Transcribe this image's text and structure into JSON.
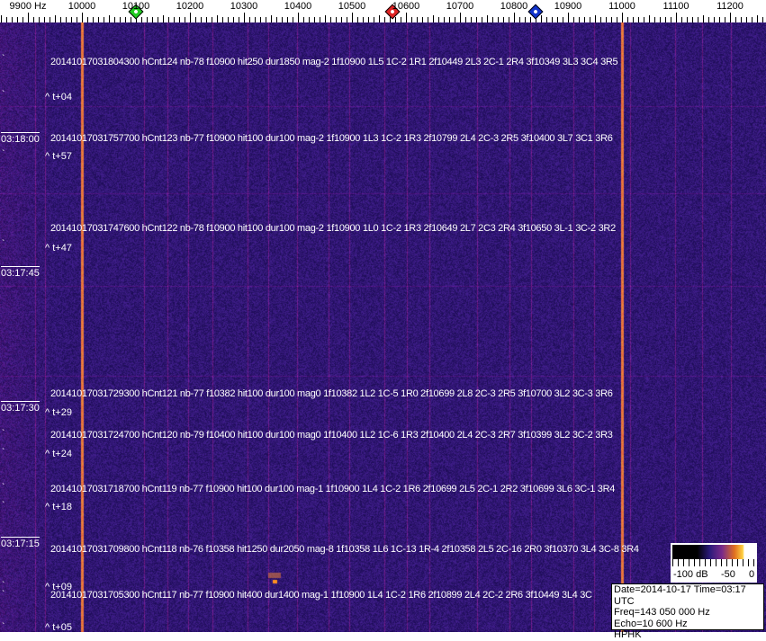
{
  "axis": {
    "unit_label": "9900 Hz",
    "ticks": [
      "10000",
      "10100",
      "10200",
      "10300",
      "10400",
      "10500",
      "10600",
      "10700",
      "10800",
      "10900",
      "11000",
      "11100",
      "11200"
    ],
    "markers": [
      {
        "name": "green-marker",
        "freq_hz": 10100,
        "color": "#22cc22"
      },
      {
        "name": "red-marker",
        "freq_hz": 10575,
        "color": "#dd2222"
      },
      {
        "name": "blue-marker",
        "freq_hz": 10840,
        "color": "#1133cc"
      }
    ]
  },
  "colors": {
    "background": "#1c1470",
    "strong_line": "#e07030"
  },
  "time_labels": [
    "03:18:00",
    "03:17:45",
    "03:17:30",
    "03:17:15"
  ],
  "detections": [
    "20141017031804300 hCnt124 nb-78 f10900 hit250 dur1850 mag-2 1f10900 1L5 1C-2 1R1 2f10449 2L3 2C-1 2R4 3f10349 3L3 3C4 3R5",
    "20141017031757700 hCnt123 nb-77 f10900 hit100 dur100 mag-2 1f10900 1L3 1C-2 1R3 2f10799 2L4 2C-3 2R5 3f10400 3L7 3C1 3R6",
    "20141017031747600 hCnt122 nb-78 f10900 hit100 dur100 mag-2 1f10900 1L0 1C-2 1R3 2f10649 2L7 2C3 2R4 3f10650 3L-1 3C-2 3R2",
    "20141017031729300 hCnt121 nb-77 f10382 hit100 dur100 mag0 1f10382 1L2 1C-5 1R0 2f10699 2L8 2C-3 2R5 3f10700 3L2 3C-3 3R6",
    "20141017031724700 hCnt120 nb-79 f10400 hit100 dur100 mag0 1f10400 1L2 1C-6 1R3 2f10400 2L4 2C-3 2R7 3f10399 3L2 3C-2 3R3",
    "20141017031718700 hCnt119 nb-77 f10900 hit100 dur100 mag-1 1f10900 1L4 1C-2 1R6 2f10699 2L5 2C-1 2R2 3f10699 3L6 3C-1 3R4",
    "20141017031709800 hCnt118 nb-76 f10358 hit1250 dur2050 mag-8 1f10358 1L6 1C-13 1R-4 2f10358 2L5 2C-16 2R0 3f10370 3L4 3C-8 3R4",
    "20141017031705300 hCnt117 nb-77 f10900 hit400 dur1400 mag-1 1f10900 1L4 1C-2 1R6 2f10899 2L4 2C-2 2R6 3f10449 3L4 3C"
  ],
  "relative": [
    "^ t+04",
    "^ t+57",
    "^ t+47",
    "^ t+29",
    "^ t+24",
    "^ t+18",
    "^ t+09",
    "^ t+05"
  ],
  "legend": {
    "labels": [
      "-100 dB",
      "-50",
      "0"
    ]
  },
  "info": {
    "date_time": "Date=2014-10-17 Time=03:17 UTC",
    "freq": "Freq=143 050 000 Hz",
    "echo": "Echo=10 600 Hz",
    "station": "HPHK"
  }
}
